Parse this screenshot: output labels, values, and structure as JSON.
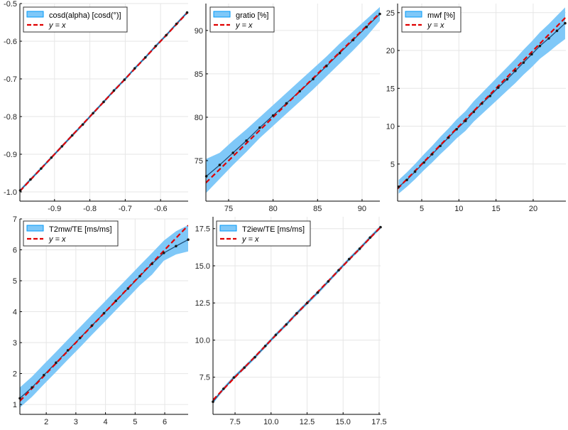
{
  "colors": {
    "band": "#7fc8f8",
    "band_border": "#009af9",
    "line": "#1f4e79",
    "marker": "#1b1b1b",
    "reference": "#e00000",
    "grid": "#e6e6e6",
    "axis": "#000000",
    "legend_border": "#333333"
  },
  "chart_data": [
    {
      "type": "line",
      "grid": true,
      "legend_position": "top-left",
      "xlim": [
        -0.998,
        -0.522
      ],
      "ylim": [
        -1.0245,
        -0.5
      ],
      "xticks": [
        -0.9,
        -0.8,
        -0.7,
        -0.6
      ],
      "xtick_labels": [
        "-0.9",
        "-0.8",
        "-0.7",
        "-0.6"
      ],
      "yticks": [
        -1.0,
        -0.9,
        -0.8,
        -0.7,
        -0.6,
        -0.5
      ],
      "ytick_labels": [
        "-1.0",
        "-0.9",
        "-0.8",
        "-0.7",
        "-0.6",
        "-0.5"
      ],
      "series": [
        {
          "name": "cosd(alpha) [cosd(°)]",
          "x": [
            -0.997,
            -0.968,
            -0.938,
            -0.909,
            -0.879,
            -0.85,
            -0.82,
            -0.791,
            -0.761,
            -0.732,
            -0.702,
            -0.673,
            -0.643,
            -0.614,
            -0.584,
            -0.555,
            -0.525
          ],
          "y": [
            -0.996,
            -0.967,
            -0.938,
            -0.909,
            -0.879,
            -0.85,
            -0.821,
            -0.791,
            -0.761,
            -0.731,
            -0.702,
            -0.672,
            -0.643,
            -0.613,
            -0.584,
            -0.554,
            -0.524
          ],
          "lower": [
            -1.0,
            -0.971,
            -0.942,
            -0.913,
            -0.883,
            -0.854,
            -0.825,
            -0.795,
            -0.765,
            -0.735,
            -0.706,
            -0.676,
            -0.647,
            -0.617,
            -0.588,
            -0.558,
            -0.528
          ],
          "upper": [
            -0.992,
            -0.963,
            -0.934,
            -0.905,
            -0.875,
            -0.846,
            -0.817,
            -0.787,
            -0.757,
            -0.727,
            -0.698,
            -0.668,
            -0.639,
            -0.609,
            -0.58,
            -0.55,
            -0.52
          ]
        },
        {
          "name": "y = x",
          "line_style": "dashed"
        }
      ]
    },
    {
      "type": "line",
      "grid": true,
      "legend_position": "top-left",
      "xlim": [
        72.45,
        92.0
      ],
      "ylim": [
        70.33,
        93.1
      ],
      "xticks": [
        75,
        80,
        85,
        90
      ],
      "xtick_labels": [
        "75",
        "80",
        "85",
        "90"
      ],
      "yticks": [
        75,
        80,
        85,
        90
      ],
      "ytick_labels": [
        "75",
        "80",
        "85",
        "90"
      ],
      "series": [
        {
          "name": "gratio [%]",
          "x": [
            72.5,
            74.0,
            75.5,
            77.0,
            78.5,
            80.0,
            81.5,
            83.0,
            84.5,
            86.0,
            87.5,
            89.0,
            90.5,
            92.0
          ],
          "y": [
            73.2,
            74.5,
            75.9,
            77.3,
            78.8,
            80.2,
            81.6,
            83.0,
            84.4,
            85.9,
            87.4,
            88.9,
            90.4,
            91.9
          ],
          "lower": [
            71.3,
            72.9,
            74.5,
            76.0,
            77.6,
            79.0,
            80.4,
            81.8,
            83.2,
            84.7,
            86.2,
            87.7,
            89.3,
            91.1
          ],
          "upper": [
            75.2,
            75.9,
            77.3,
            78.6,
            80.0,
            81.4,
            82.8,
            84.2,
            85.6,
            87.0,
            88.5,
            89.9,
            91.3,
            92.7
          ]
        },
        {
          "name": "y = x",
          "line_style": "dashed"
        }
      ]
    },
    {
      "type": "line",
      "grid": true,
      "legend_position": "top-left",
      "xlim": [
        1.75,
        24.4
      ],
      "ylim": [
        0.1,
        26.2
      ],
      "xticks": [
        5,
        10,
        15,
        20
      ],
      "xtick_labels": [
        "5",
        "10",
        "15",
        "20"
      ],
      "yticks": [
        5,
        10,
        15,
        20,
        25
      ],
      "ytick_labels": [
        "5",
        "10",
        "15",
        "20",
        "25"
      ],
      "series": [
        {
          "name": "mwf [%]",
          "x": [
            1.9,
            3.0,
            4.1,
            5.3,
            6.4,
            7.5,
            8.6,
            9.7,
            10.9,
            12.0,
            13.1,
            14.2,
            15.3,
            16.5,
            17.6,
            18.7,
            19.8,
            20.9,
            22.1,
            23.2,
            24.3
          ],
          "y": [
            2.0,
            2.9,
            4.0,
            5.2,
            6.3,
            7.4,
            8.5,
            9.6,
            10.7,
            11.9,
            13.0,
            14.0,
            15.1,
            16.2,
            17.3,
            18.4,
            19.5,
            20.6,
            21.6,
            22.6,
            23.6
          ],
          "lower": [
            1.1,
            2.0,
            3.0,
            4.2,
            5.2,
            6.3,
            7.3,
            8.4,
            9.4,
            10.6,
            11.6,
            12.6,
            13.6,
            14.7,
            15.7,
            16.8,
            17.8,
            18.9,
            19.8,
            20.7,
            21.5
          ],
          "upper": [
            2.9,
            3.9,
            5.0,
            6.3,
            7.4,
            8.6,
            9.7,
            10.9,
            12.0,
            13.3,
            14.4,
            15.5,
            16.6,
            17.8,
            18.9,
            20.1,
            21.2,
            22.4,
            23.5,
            24.6,
            25.7
          ]
        },
        {
          "name": "y = x",
          "line_style": "dashed"
        }
      ]
    },
    {
      "type": "line",
      "grid": true,
      "legend_position": "top-left",
      "xlim": [
        1.11,
        6.79
      ],
      "ylim": [
        0.68,
        7.0
      ],
      "xticks": [
        2,
        3,
        4,
        5,
        6
      ],
      "xtick_labels": [
        "2",
        "3",
        "4",
        "5",
        "6"
      ],
      "yticks": [
        1,
        2,
        3,
        4,
        5,
        6,
        7
      ],
      "ytick_labels": [
        "1",
        "2",
        "3",
        "4",
        "5",
        "6",
        "7"
      ],
      "series": [
        {
          "name": "T2mw/TE [ms/ms]",
          "x": [
            1.11,
            1.52,
            1.92,
            2.33,
            2.73,
            3.14,
            3.54,
            3.95,
            4.35,
            4.76,
            5.16,
            5.57,
            5.97,
            6.38,
            6.79
          ],
          "y": [
            1.2,
            1.55,
            1.95,
            2.35,
            2.75,
            3.15,
            3.55,
            3.95,
            4.35,
            4.75,
            5.15,
            5.55,
            5.9,
            6.12,
            6.33
          ],
          "lower": [
            0.9,
            1.25,
            1.65,
            2.05,
            2.45,
            2.85,
            3.25,
            3.65,
            4.05,
            4.45,
            4.85,
            5.2,
            5.65,
            5.85,
            5.95
          ],
          "upper": [
            1.55,
            1.9,
            2.3,
            2.7,
            3.1,
            3.5,
            3.9,
            4.3,
            4.7,
            5.1,
            5.5,
            5.9,
            6.3,
            6.6,
            6.8
          ]
        },
        {
          "name": "y = x",
          "line_style": "dashed"
        }
      ]
    },
    {
      "type": "line",
      "grid": true,
      "legend_position": "top-left",
      "xlim": [
        5.97,
        17.6
      ],
      "ylim": [
        5.0,
        18.3
      ],
      "xticks": [
        7.5,
        10.0,
        12.5,
        15.0,
        17.5
      ],
      "xtick_labels": [
        "7.5",
        "10.0",
        "12.5",
        "15.0",
        "17.5"
      ],
      "yticks": [
        7.5,
        10.0,
        12.5,
        15.0,
        17.5
      ],
      "ytick_labels": [
        "7.5",
        "10.0",
        "12.5",
        "15.0",
        "17.5"
      ],
      "series": [
        {
          "name": "T2iew/TE [ms/ms]",
          "x": [
            5.97,
            6.7,
            7.42,
            8.15,
            8.88,
            9.6,
            10.33,
            11.06,
            11.78,
            12.51,
            13.24,
            13.97,
            14.69,
            15.42,
            16.15,
            16.87,
            17.6
          ],
          "y": [
            5.85,
            6.72,
            7.48,
            8.15,
            8.85,
            9.6,
            10.35,
            11.05,
            11.8,
            12.5,
            13.2,
            13.95,
            14.7,
            15.45,
            16.15,
            16.9,
            17.6
          ],
          "lower": [
            5.73,
            6.6,
            7.36,
            8.03,
            8.73,
            9.48,
            10.23,
            10.93,
            11.68,
            12.38,
            13.08,
            13.83,
            14.58,
            15.33,
            16.03,
            16.78,
            17.48
          ],
          "upper": [
            5.97,
            6.84,
            7.6,
            8.27,
            8.97,
            9.72,
            10.47,
            11.17,
            11.92,
            12.62,
            13.32,
            14.07,
            14.82,
            15.57,
            16.27,
            17.02,
            17.72
          ]
        },
        {
          "name": "y = x",
          "line_style": "dashed"
        }
      ]
    }
  ]
}
